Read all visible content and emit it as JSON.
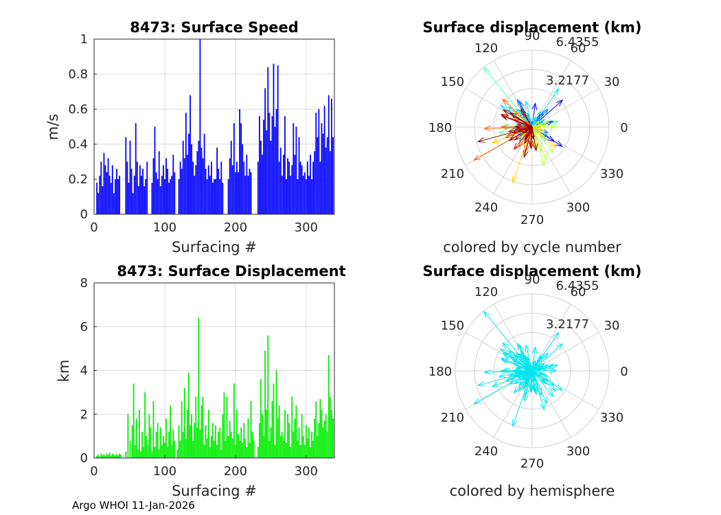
{
  "footer": "Argo WHOI 11-Jan-2026",
  "chart_data": [
    {
      "type": "bar",
      "id": "speed",
      "title": "8473: Surface Speed",
      "xlabel": "Surfacing #",
      "ylabel": "m/s",
      "xlim": [
        0,
        340
      ],
      "ylim": [
        0,
        1
      ],
      "xticks": [
        0,
        100,
        200,
        300
      ],
      "yticks": [
        0,
        0.2,
        0.4,
        0.6,
        0.8,
        1
      ],
      "ytick_labels": [
        "0",
        "0.2",
        "0.4",
        "0.6",
        "0.8",
        "1"
      ],
      "color": "#0000ff",
      "grid": true,
      "x": [
        4,
        6,
        8,
        10,
        12,
        14,
        16,
        18,
        20,
        22,
        24,
        26,
        28,
        30,
        32,
        34,
        36,
        45,
        47,
        49,
        51,
        53,
        55,
        57,
        59,
        61,
        63,
        65,
        67,
        69,
        71,
        73,
        75,
        82,
        84,
        86,
        88,
        90,
        92,
        94,
        96,
        98,
        100,
        102,
        104,
        106,
        108,
        110,
        112,
        114,
        120,
        122,
        124,
        126,
        128,
        130,
        132,
        134,
        136,
        138,
        140,
        142,
        144,
        146,
        148,
        150,
        152,
        154,
        156,
        158,
        160,
        162,
        164,
        166,
        168,
        170,
        172,
        174,
        176,
        178,
        180,
        182,
        190,
        192,
        194,
        196,
        198,
        200,
        202,
        204,
        206,
        208,
        210,
        212,
        214,
        216,
        218,
        220,
        222,
        232,
        234,
        236,
        238,
        240,
        242,
        244,
        246,
        248,
        250,
        252,
        254,
        256,
        258,
        260,
        262,
        264,
        266,
        268,
        270,
        272,
        274,
        276,
        278,
        280,
        282,
        284,
        286,
        288,
        290,
        292,
        294,
        296,
        298,
        300,
        302,
        304,
        306,
        308,
        310,
        312,
        314,
        316,
        318,
        320,
        322,
        324,
        326,
        328,
        330,
        332,
        334,
        336,
        338
      ],
      "values": [
        0.18,
        0.12,
        0.22,
        0.3,
        0.16,
        0.35,
        0.28,
        0.24,
        0.32,
        0.22,
        0.18,
        0.28,
        0.12,
        0.2,
        0.26,
        0.2,
        0.22,
        0.44,
        0.3,
        0.18,
        0.42,
        0.26,
        0.12,
        0.22,
        0.52,
        0.3,
        0.16,
        0.28,
        0.22,
        0.26,
        0.16,
        0.2,
        0.3,
        0.18,
        0.32,
        0.5,
        0.24,
        0.2,
        0.36,
        0.16,
        0.22,
        0.28,
        0.2,
        0.32,
        0.26,
        0.18,
        0.2,
        0.22,
        0.34,
        0.24,
        0.2,
        0.3,
        0.26,
        0.42,
        0.32,
        0.58,
        0.34,
        0.46,
        0.68,
        0.4,
        0.3,
        0.22,
        0.28,
        0.36,
        0.42,
        1.0,
        0.38,
        0.32,
        0.46,
        0.26,
        0.2,
        0.28,
        0.22,
        0.3,
        0.18,
        0.2,
        0.2,
        0.38,
        0.26,
        0.2,
        0.3,
        0.18,
        0.2,
        0.32,
        0.42,
        0.28,
        0.52,
        0.24,
        0.3,
        0.24,
        0.6,
        0.52,
        0.4,
        0.3,
        0.22,
        0.34,
        0.22,
        0.26,
        0.24,
        0.3,
        0.56,
        0.42,
        0.34,
        0.54,
        0.72,
        0.48,
        0.84,
        0.58,
        0.42,
        0.56,
        0.86,
        0.5,
        0.6,
        0.85,
        0.3,
        0.38,
        0.22,
        0.34,
        0.56,
        0.2,
        0.32,
        0.3,
        0.22,
        0.28,
        0.52,
        0.34,
        0.5,
        0.2,
        0.44,
        0.3,
        0.28,
        0.22,
        0.24,
        0.2,
        0.3,
        0.22,
        0.34,
        0.2,
        0.3,
        0.36,
        0.58,
        0.44,
        0.6,
        0.3,
        0.52,
        0.46,
        0.62,
        0.38,
        0.44,
        0.68,
        0.36,
        0.66,
        0.44
      ],
      "type_note": "vertical stem bars per surfacing"
    },
    {
      "type": "bar",
      "id": "displacement",
      "title": "8473: Surface Displacement",
      "xlabel": "Surfacing #",
      "ylabel": "km",
      "xlim": [
        0,
        340
      ],
      "ylim": [
        0,
        8
      ],
      "xticks": [
        0,
        100,
        200,
        300
      ],
      "yticks": [
        0,
        2,
        4,
        6,
        8
      ],
      "ytick_labels": [
        "0",
        "2",
        "4",
        "6",
        "8"
      ],
      "color": "#00ee00",
      "grid": true,
      "x": [
        4,
        6,
        8,
        10,
        12,
        14,
        16,
        18,
        20,
        22,
        24,
        26,
        28,
        30,
        32,
        34,
        36,
        38,
        45,
        48,
        51,
        54,
        56,
        58,
        60,
        62,
        64,
        66,
        68,
        70,
        72,
        74,
        76,
        78,
        80,
        82,
        84,
        86,
        88,
        90,
        92,
        94,
        96,
        98,
        100,
        102,
        104,
        106,
        108,
        110,
        112,
        114,
        118,
        120,
        122,
        124,
        126,
        128,
        130,
        132,
        134,
        136,
        138,
        140,
        142,
        144,
        146,
        148,
        150,
        152,
        154,
        156,
        158,
        160,
        162,
        164,
        166,
        168,
        170,
        172,
        174,
        176,
        178,
        180,
        182,
        184,
        186,
        188,
        190,
        192,
        194,
        196,
        198,
        200,
        202,
        204,
        206,
        208,
        210,
        212,
        214,
        216,
        218,
        220,
        222,
        224,
        226,
        232,
        234,
        236,
        238,
        240,
        242,
        244,
        246,
        248,
        250,
        252,
        254,
        256,
        258,
        260,
        262,
        264,
        266,
        268,
        270,
        272,
        274,
        276,
        278,
        280,
        282,
        284,
        286,
        288,
        290,
        292,
        294,
        296,
        298,
        300,
        302,
        304,
        306,
        308,
        310,
        312,
        314,
        316,
        318,
        320,
        322,
        324,
        326,
        328,
        330,
        332,
        334,
        336,
        338
      ],
      "values": [
        0.1,
        0.15,
        0.08,
        0.2,
        0.12,
        0.18,
        0.1,
        0.22,
        0.14,
        0.25,
        0.12,
        0.2,
        0.15,
        0.1,
        0.18,
        0.12,
        0.2,
        0.15,
        0.3,
        2.0,
        0.8,
        1.5,
        3.4,
        0.6,
        1.8,
        0.4,
        2.2,
        0.3,
        1.2,
        0.5,
        3.0,
        1.0,
        0.6,
        2.0,
        1.4,
        0.3,
        2.6,
        0.5,
        1.2,
        1.6,
        0.4,
        1.4,
        0.6,
        1.0,
        0.7,
        1.8,
        0.5,
        1.2,
        2.4,
        0.6,
        1.3,
        0.8,
        0.4,
        1.5,
        0.8,
        2.6,
        1.2,
        3.2,
        0.9,
        2.2,
        3.9,
        1.5,
        2.0,
        0.8,
        1.6,
        2.8,
        1.4,
        6.4,
        1.3,
        2.4,
        2.8,
        0.6,
        1.5,
        0.9,
        2.2,
        0.5,
        1.0,
        1.6,
        0.8,
        1.5,
        0.6,
        1.2,
        1.4,
        0.4,
        2.0,
        3.0,
        0.8,
        2.8,
        1.0,
        1.7,
        1.2,
        0.9,
        3.4,
        0.6,
        2.2,
        1.1,
        0.8,
        1.4,
        0.7,
        1.6,
        0.9,
        0.5,
        1.8,
        0.7,
        2.6,
        1.2,
        0.8,
        0.5,
        1.6,
        3.6,
        2.0,
        1.0,
        4.9,
        2.2,
        5.6,
        0.8,
        1.4,
        2.6,
        3.4,
        0.6,
        4.0,
        1.8,
        2.4,
        1.0,
        1.2,
        0.8,
        2.2,
        0.7,
        2.0,
        1.6,
        0.5,
        2.8,
        1.2,
        1.8,
        2.4,
        0.8,
        1.4,
        0.6,
        2.0,
        1.0,
        0.6,
        1.5,
        0.9,
        1.4,
        0.5,
        1.2,
        0.8,
        1.8,
        2.6,
        1.0,
        1.6,
        2.7,
        2.2,
        1.4,
        1.7,
        2.0,
        1.2,
        4.7,
        2.8,
        2.2,
        1.8
      ]
    },
    {
      "type": "polar-compass",
      "id": "polar1",
      "title": "Surface displacement (km)",
      "caption": "colored by cycle number",
      "angle_labels": [
        "0",
        "30",
        "60",
        "90",
        "120",
        "150",
        "180",
        "210",
        "240",
        "270",
        "300",
        "330"
      ],
      "radial_labels": [
        "3.2177",
        "6.4355"
      ],
      "rmax": 6.4355,
      "colormap": [
        "#00008f",
        "#0000ff",
        "#0070ff",
        "#00e0ff",
        "#50ffaf",
        "#c0ff40",
        "#ffd000",
        "#ff6000",
        "#e00000",
        "#900000"
      ]
    },
    {
      "type": "polar-compass",
      "id": "polar2",
      "title": "Surface displacement (km)",
      "caption": "colored by hemisphere",
      "angle_labels": [
        "0",
        "30",
        "60",
        "90",
        "120",
        "150",
        "180",
        "210",
        "240",
        "270",
        "300",
        "330"
      ],
      "radial_labels": [
        "3.2177",
        "6.4355"
      ],
      "rmax": 6.4355,
      "color": "#00e5ee"
    }
  ]
}
